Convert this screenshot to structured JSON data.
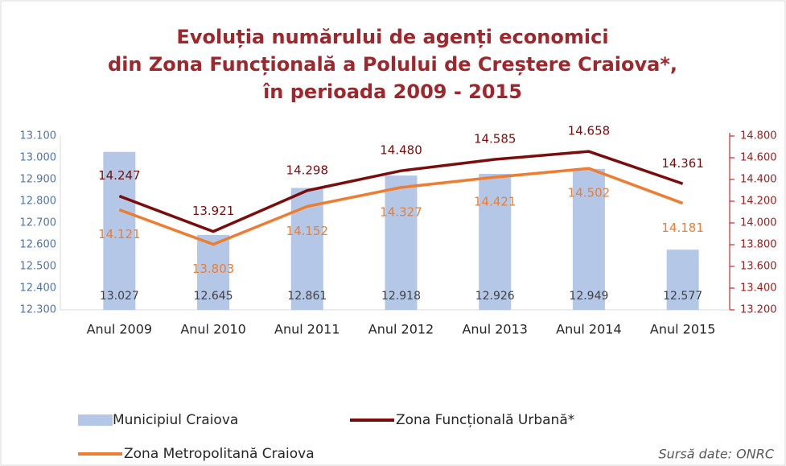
{
  "chart_data": {
    "type": "bar",
    "title": [
      "Evoluția numărului de agenți economici",
      "din Zona Funcțională a Polului de Creștere Craiova*,",
      "în perioada 2009 - 2015"
    ],
    "categories": [
      "Anul 2009",
      "Anul 2010",
      "Anul 2011",
      "Anul 2012",
      "Anul 2013",
      "Anul 2014",
      "Anul 2015"
    ],
    "series": [
      {
        "name": "Municipiul Craiova",
        "type": "bar",
        "color": "#b4c7e7",
        "values": [
          13027,
          12645,
          12861,
          12918,
          12926,
          12949,
          12577
        ],
        "value_labels": [
          "13.027",
          "12.645",
          "12.861",
          "12.918",
          "12.926",
          "12.949",
          "12.577"
        ]
      },
      {
        "name": "Zona Funcțională Urbană*",
        "type": "line",
        "axis": "y2",
        "color": "#7b0c0c",
        "values": [
          14247,
          13921,
          14298,
          14480,
          14585,
          14658,
          14361
        ],
        "value_labels": [
          "14.247",
          "13.921",
          "14.298",
          "14.480",
          "14.585",
          "14.658",
          "14.361"
        ]
      },
      {
        "name": "Zona Metropolitană Craiova",
        "type": "line",
        "axis": "y2",
        "color": "#ed7d31",
        "values": [
          14121,
          13803,
          14152,
          14327,
          14421,
          14502,
          14181
        ],
        "value_labels": [
          "14.121",
          "13.803",
          "14.152",
          "14.327",
          "14.421",
          "14.502",
          "14.181"
        ]
      }
    ],
    "ylim": [
      12300,
      13100
    ],
    "yticks": [
      {
        "value": 12300,
        "label": "12.300"
      },
      {
        "value": 12400,
        "label": "12.400"
      },
      {
        "value": 12500,
        "label": "12.500"
      },
      {
        "value": 12600,
        "label": "12.600"
      },
      {
        "value": 12700,
        "label": "12.700"
      },
      {
        "value": 12800,
        "label": "12.800"
      },
      {
        "value": 12900,
        "label": "12.900"
      },
      {
        "value": 13000,
        "label": "13.000"
      },
      {
        "value": 13100,
        "label": "13.100"
      }
    ],
    "y2lim": [
      13200,
      14800
    ],
    "y2ticks": [
      {
        "value": 13200,
        "label": "13.200"
      },
      {
        "value": 13400,
        "label": "13.400"
      },
      {
        "value": 13600,
        "label": "13.600"
      },
      {
        "value": 13800,
        "label": "13.800"
      },
      {
        "value": 14000,
        "label": "14.000"
      },
      {
        "value": 14200,
        "label": "14.200"
      },
      {
        "value": 14400,
        "label": "14.400"
      },
      {
        "value": 14600,
        "label": "14.600"
      },
      {
        "value": 14800,
        "label": "14.800"
      }
    ],
    "annotation": "Sursă date: ONRC"
  }
}
